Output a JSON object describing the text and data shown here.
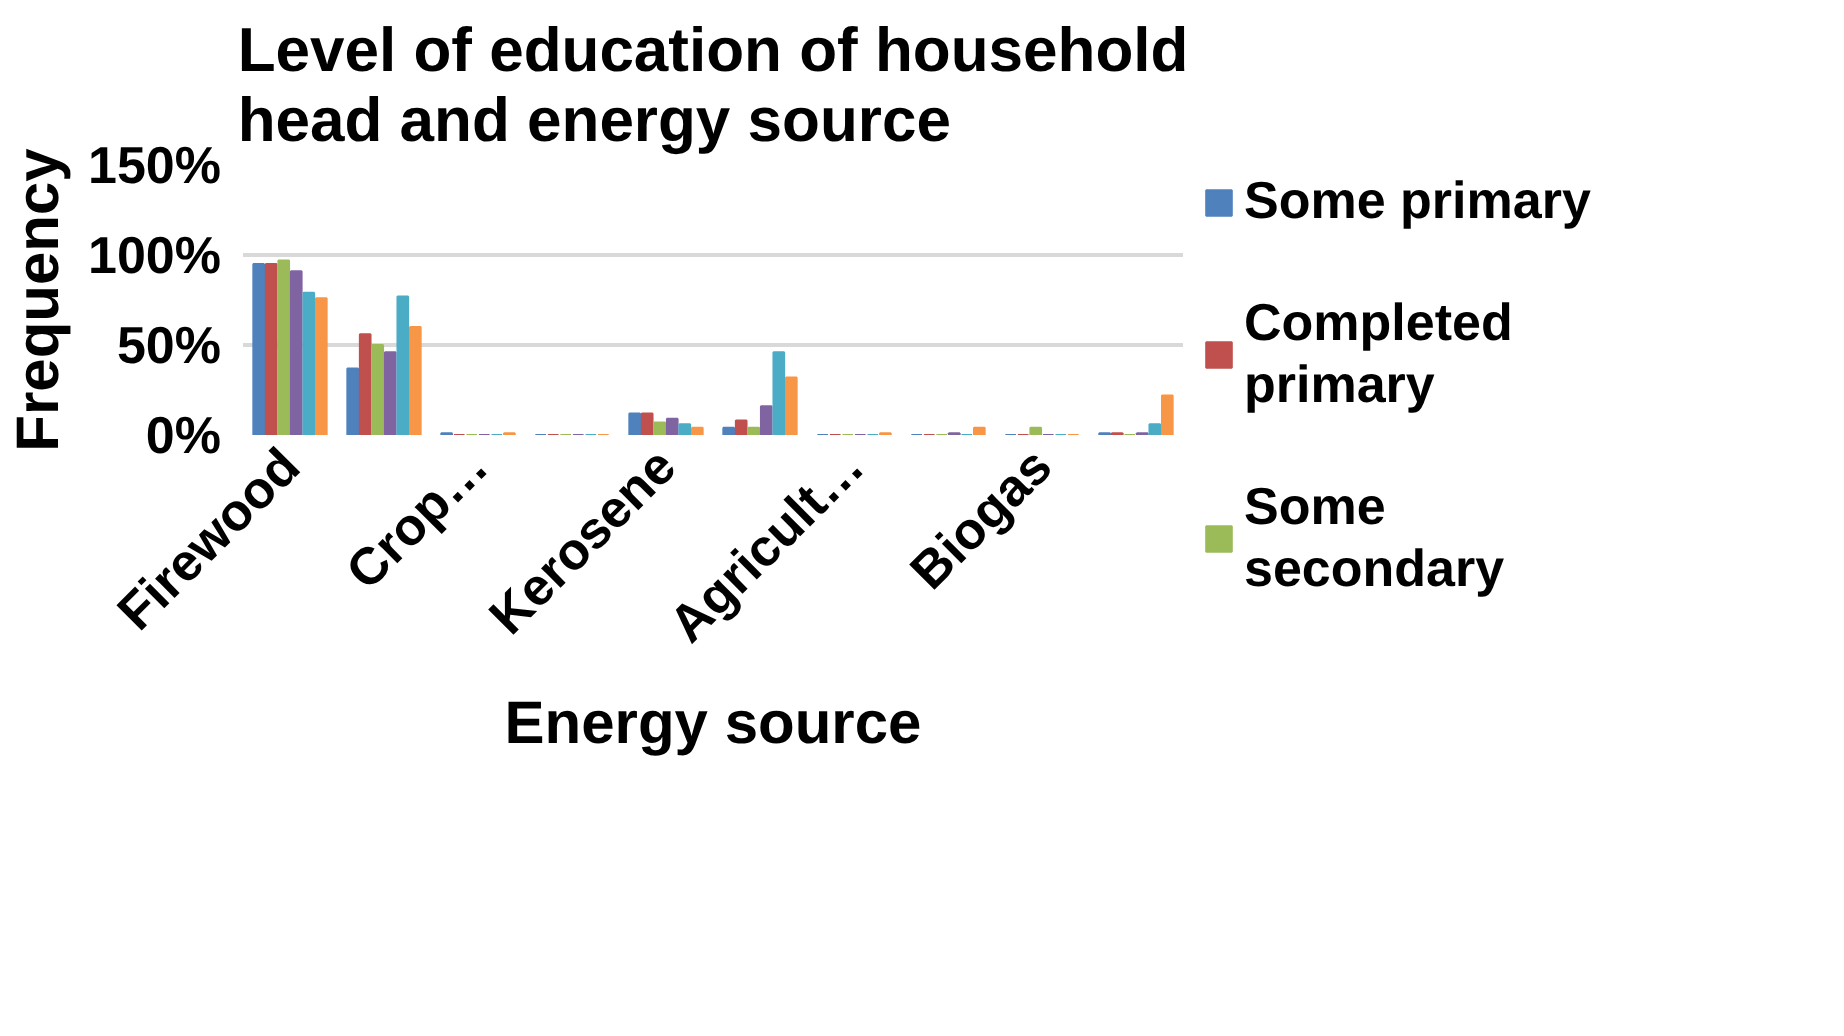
{
  "chart_data": {
    "type": "bar",
    "title": "Level of education of household head and energy source",
    "xlabel": "Energy source",
    "ylabel": "Frequency",
    "categories": [
      "Firewood",
      null,
      "Crop…",
      null,
      "Kerosene",
      null,
      "Agricult…",
      null,
      "Biogas",
      null
    ],
    "series": [
      {
        "name": "Some primary",
        "color": "#4f81bd",
        "values": [
          95,
          37,
          1,
          0,
          12,
          4,
          0,
          0,
          0,
          1
        ]
      },
      {
        "name": "Completed primary",
        "color": "#c0504d",
        "values": [
          95,
          56,
          0,
          0,
          12,
          8,
          0,
          0,
          0,
          1
        ]
      },
      {
        "name": "Some secondary",
        "color": "#9bbb59",
        "values": [
          97,
          50,
          0,
          0,
          7,
          4,
          0,
          0,
          4,
          0
        ]
      },
      {
        "color": "#8064a2",
        "values": [
          91,
          46,
          0,
          0,
          9,
          16,
          0,
          1,
          0,
          1
        ]
      },
      {
        "color": "#4bacc6",
        "values": [
          79,
          77,
          0,
          0,
          6,
          46,
          0,
          0,
          0,
          6
        ]
      },
      {
        "color": "#f79646",
        "values": [
          76,
          60,
          1,
          0,
          4,
          32,
          1,
          4,
          0,
          22
        ]
      }
    ],
    "ylim": [
      0,
      150
    ],
    "yticks": [
      {
        "value": 0,
        "label": "0%"
      },
      {
        "value": 50,
        "label": "50%"
      },
      {
        "value": 100,
        "label": "100%"
      },
      {
        "value": 150,
        "label": "150%"
      }
    ],
    "grid": "y",
    "legend": "right"
  }
}
